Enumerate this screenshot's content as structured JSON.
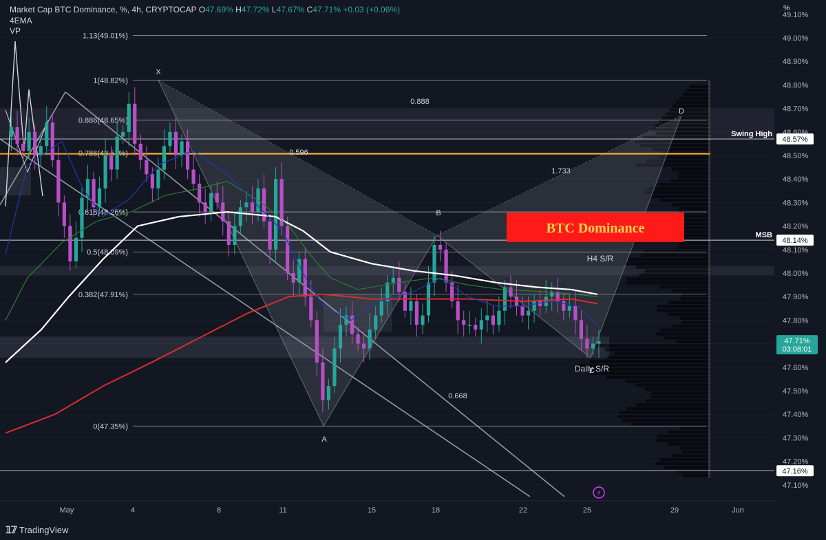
{
  "header": {
    "symbol": "Market Cap BTC Dominance, %, 4h, CRYPTOCAP",
    "o_label": "O",
    "o": "47.69%",
    "h_label": "H",
    "h": "47.72%",
    "l_label": "L",
    "l": "47.67%",
    "c_label": "C",
    "c": "47.71%",
    "chg": "+0.03 (+0.06%)",
    "indicator1": "4EMA",
    "indicator2": "VP"
  },
  "footer": {
    "brand": "TradingView",
    "logo": "tv-logo-icon"
  },
  "colors": {
    "bg": "#131722",
    "up": "#26a69a",
    "down": "#b84fc7",
    "grid": "#2a2e39",
    "ema1": "#ffffff",
    "ema2": "#d32f2f",
    "ema3": "#2e7d32",
    "ema4": "#1e3ab0",
    "orange": "#f5a623",
    "banner_bg": "#ff1a1a",
    "banner_text": "#ffd54f"
  },
  "chart_data": {
    "type": "candlestick",
    "y_unit": "%",
    "ylim": [
      47.05,
      49.12
    ],
    "y_ticks": [
      "49.10%",
      "49.00%",
      "48.90%",
      "48.80%",
      "48.70%",
      "48.60%",
      "48.50%",
      "48.40%",
      "48.30%",
      "48.20%",
      "48.10%",
      "48.00%",
      "47.90%",
      "47.80%",
      "47.70%",
      "47.60%",
      "47.50%",
      "47.40%",
      "47.30%",
      "47.20%",
      "47.10%"
    ],
    "x_ticks": [
      "May",
      "4",
      "8",
      "11",
      "15",
      "18",
      "22",
      "25",
      "29",
      "Jun"
    ],
    "price_label": {
      "value": 47.71,
      "text": "47.71%",
      "countdown": "03:08:01"
    },
    "right_labels": [
      {
        "text": "Swing High",
        "value": 48.57,
        "price": "48.57%"
      },
      {
        "text": "MSB",
        "value": 48.14,
        "price": "48.14%"
      },
      {
        "text": "",
        "value": 47.16,
        "price": "47.16%"
      }
    ],
    "fib_levels": [
      {
        "text": "1.13(49.01%)",
        "value": 49.01
      },
      {
        "text": "1(48.82%)",
        "value": 48.82
      },
      {
        "text": "0.886(48.65%)",
        "value": 48.65
      },
      {
        "text": "0.786(48.51%)",
        "value": 48.51
      },
      {
        "text": "0.618(48.26%)",
        "value": 48.26
      },
      {
        "text": "0.5(48.09%)",
        "value": 48.09
      },
      {
        "text": "0.382(47.91%)",
        "value": 47.91
      },
      {
        "text": "0(47.35%)",
        "value": 47.35
      }
    ],
    "harmonic_points": [
      {
        "label": "X",
        "value": 48.82
      },
      {
        "label": "A",
        "value": 47.35
      },
      {
        "label": "B",
        "value": 48.16
      },
      {
        "label": "C",
        "value": 47.64
      },
      {
        "label": "D",
        "value": 48.67
      }
    ],
    "ratios": [
      "0.888",
      "0.596",
      "1.733",
      "0.668"
    ],
    "annotations": [
      "H4 S/R",
      "Daily S/R"
    ],
    "banner": "BTC Dominance"
  }
}
